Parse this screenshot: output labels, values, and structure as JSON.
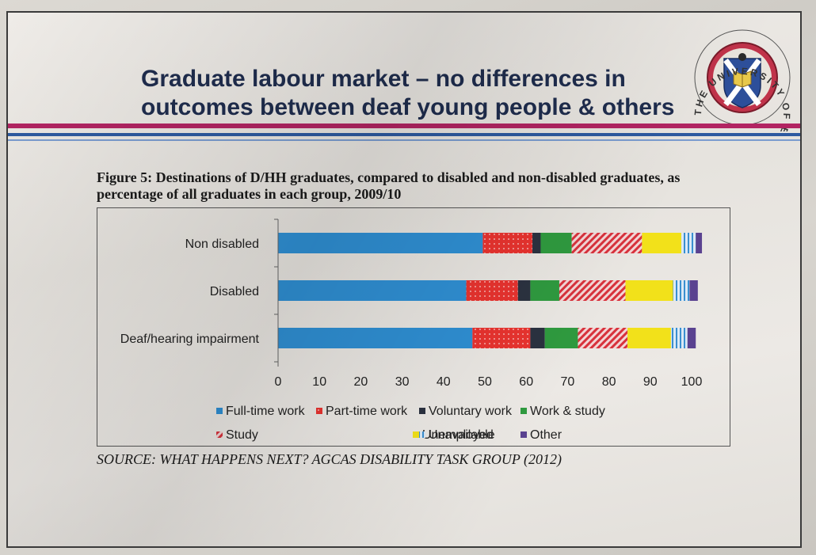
{
  "slide": {
    "title": "Graduate labour market – no differences in outcomes between deaf young people & others",
    "figure_title": "Figure 5: Destinations of D/HH graduates, compared to disabled and non-disabled graduates, as percentage of all graduates in each group, 2009/10",
    "source": "SOURCE: WHAT HAPPENS NEXT? AGCAS DISABILITY TASK GROUP (2012)"
  },
  "seal": {
    "ring_text": "THE UNIVERSITY OF EDINBURGH",
    "colors": {
      "ring": "#c0334a",
      "shield": "#2d4f9a",
      "saltire": "#ffffff",
      "book": "#e8c84a"
    }
  },
  "chart_data": {
    "type": "bar",
    "orientation": "horizontal",
    "stacked": true,
    "categories": [
      "Non disabled",
      "Disabled",
      "Deaf/hearing impairment"
    ],
    "xlim": [
      0,
      100
    ],
    "xticks": [
      "0",
      "10",
      "20",
      "30",
      "40",
      "50",
      "60",
      "70",
      "80",
      "90",
      "100"
    ],
    "legend_position": "bottom",
    "series": [
      {
        "name": "Full-time work",
        "color": "#2f8fd3",
        "pattern": "solid",
        "values": [
          49.5,
          45.5,
          47
        ]
      },
      {
        "name": "Part-time work",
        "color": "#e8332f",
        "pattern": "dots",
        "values": [
          12,
          12.5,
          14
        ]
      },
      {
        "name": "Voluntary work",
        "color": "#2b3240",
        "pattern": "solid",
        "values": [
          2,
          3,
          3.5
        ]
      },
      {
        "name": "Work & study",
        "color": "#2f9a3f",
        "pattern": "solid",
        "values": [
          7.5,
          7,
          8
        ]
      },
      {
        "name": "Study",
        "color": "#d8323c",
        "pattern": "diagonal",
        "values": [
          17,
          16,
          12
        ]
      },
      {
        "name": "Unemployed",
        "color": "#f2e11a",
        "pattern": "solid",
        "values": [
          9.5,
          11.5,
          10.5
        ]
      },
      {
        "name": "Unavailable",
        "color": "#3a8fd0",
        "pattern": "vertical",
        "values": [
          3.5,
          4,
          4
        ]
      },
      {
        "name": "Other",
        "color": "#5a4290",
        "pattern": "solid",
        "values": [
          1.5,
          2,
          2
        ]
      }
    ]
  }
}
